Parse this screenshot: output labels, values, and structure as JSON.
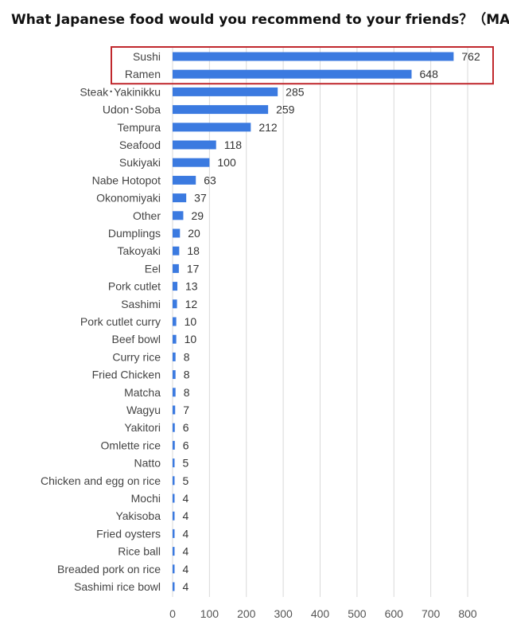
{
  "chart_data": {
    "type": "bar",
    "orientation": "horizontal",
    "title": "What Japanese food would you recommend to your friends？（MA）",
    "categories": [
      "Sushi",
      "Ramen",
      "Steak･Yakinikku",
      "Udon･Soba",
      "Tempura",
      "Seafood",
      "Sukiyaki",
      "Nabe Hotopot",
      "Okonomiyaki",
      "Other",
      "Dumplings",
      "Takoyaki",
      "Eel",
      "Pork cutlet",
      "Sashimi",
      "Pork cutlet curry",
      "Beef bowl",
      "Curry rice",
      "Fried Chicken",
      "Matcha",
      "Wagyu",
      "Yakitori",
      "Omlette rice",
      "Natto",
      "Chicken and egg on rice",
      "Mochi",
      "Yakisoba",
      "Fried oysters",
      "Rice ball",
      "Breaded pork on rice",
      "Sashimi rice bowl"
    ],
    "values": [
      762,
      648,
      285,
      259,
      212,
      118,
      100,
      63,
      37,
      29,
      20,
      18,
      17,
      13,
      12,
      10,
      10,
      8,
      8,
      8,
      7,
      6,
      6,
      5,
      5,
      4,
      4,
      4,
      4,
      4,
      4
    ],
    "xlim": [
      0,
      800
    ],
    "xticks": [
      0,
      100,
      200,
      300,
      400,
      500,
      600,
      700,
      800
    ],
    "grid": "vertical",
    "highlight": [
      "Sushi",
      "Ramen"
    ],
    "bar_color": "#3b7ae0",
    "highlight_color": "#c0282d"
  }
}
